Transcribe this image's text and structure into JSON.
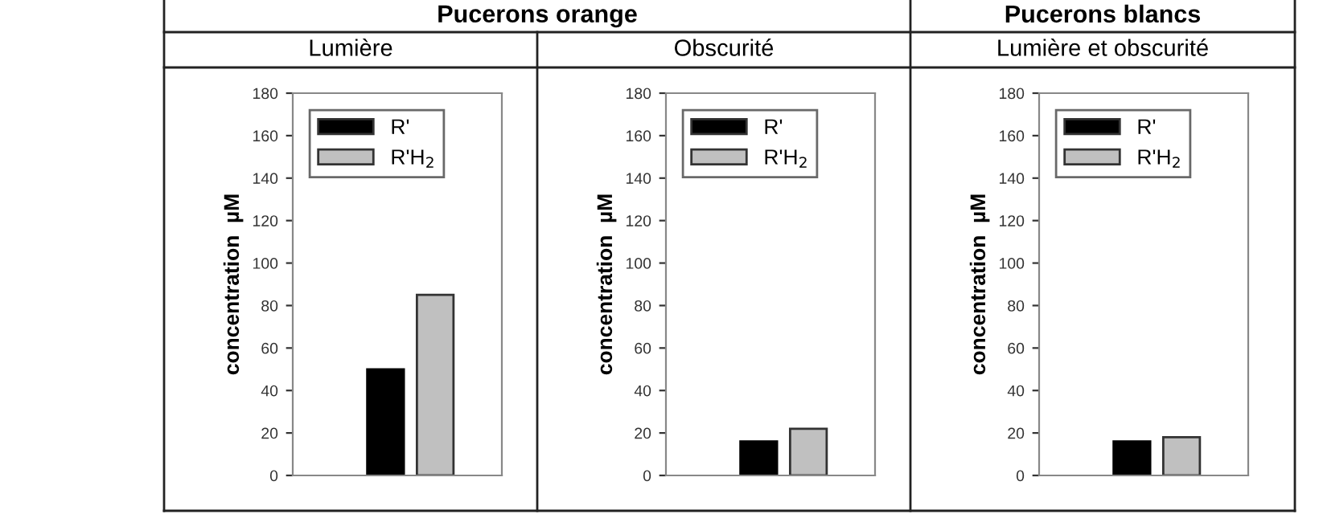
{
  "chart_data": [
    {
      "type": "bar",
      "subtitle": "Pucerons orange",
      "title": "Lumière",
      "ylabel": "concentration  µM",
      "categories": [
        null
      ],
      "ylim": [
        0,
        180
      ],
      "yticks": [
        0,
        20,
        40,
        60,
        80,
        100,
        120,
        140,
        160,
        180
      ],
      "grid": false,
      "legend": "top left",
      "series": [
        {
          "name": "R'",
          "color": "#000000",
          "values": [
            50
          ]
        },
        {
          "name": "R'H$_{2}$",
          "color": "#c0c0c0",
          "values": [
            85
          ]
        }
      ]
    },
    {
      "type": "bar",
      "title": "Obscurité",
      "ylabel": "concentration  µM",
      "categories": [
        null
      ],
      "ylim": [
        0,
        180
      ],
      "yticks": [
        0,
        20,
        40,
        60,
        80,
        100,
        120,
        140,
        160,
        180
      ],
      "grid": false,
      "legend": "top left",
      "series": [
        {
          "name": "R'",
          "color": "#000000",
          "values": [
            16
          ]
        },
        {
          "name": "R'H$_{2}$",
          "color": "#c0c0c0",
          "values": [
            22
          ]
        }
      ]
    },
    {
      "type": "bar",
      "subtitle": "Pucerons blancs",
      "title": "Lumière et obscurité",
      "ylabel": "concentration  µM",
      "categories": [
        null
      ],
      "ylim": [
        0,
        180
      ],
      "yticks": [
        0,
        20,
        40,
        60,
        80,
        100,
        120,
        140,
        160,
        180
      ],
      "grid": false,
      "legend": "top left",
      "series": [
        {
          "name": "R'",
          "color": "#000000",
          "values": [
            16
          ]
        },
        {
          "name": "R'H$_{2}$",
          "color": "#c0c0c0",
          "values": [
            18
          ]
        }
      ]
    }
  ]
}
